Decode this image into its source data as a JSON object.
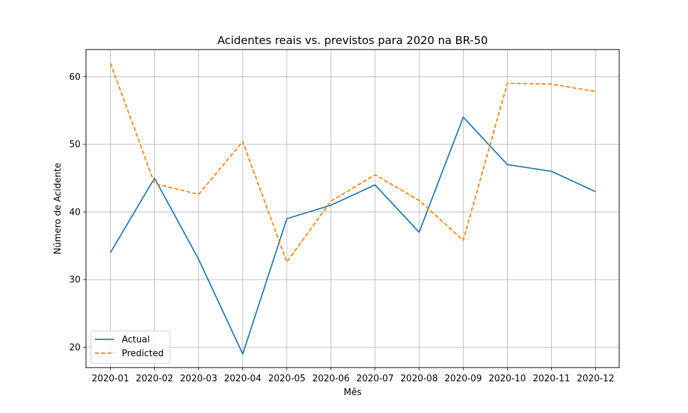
{
  "chart_data": {
    "type": "line",
    "title": "Acidentes reais vs. previstos para 2020 na BR-50",
    "xlabel": "Mês",
    "ylabel": "Número de Acidente",
    "categories": [
      "2020-01",
      "2020-02",
      "2020-03",
      "2020-04",
      "2020-05",
      "2020-06",
      "2020-07",
      "2020-08",
      "2020-09",
      "2020-10",
      "2020-11",
      "2020-12"
    ],
    "yticks": [
      20,
      30,
      40,
      50,
      60
    ],
    "ylim": [
      17.0,
      64.0
    ],
    "grid": true,
    "legend_position": "lower-left",
    "series": [
      {
        "name": "Actual",
        "color": "#1f77b4",
        "style": "solid",
        "values": [
          34,
          45,
          33,
          19,
          39,
          41,
          44,
          37,
          54,
          47,
          46,
          43
        ]
      },
      {
        "name": "Predicted",
        "color": "#ff7f0e",
        "style": "dashed",
        "values": [
          62.0,
          44.2,
          42.6,
          50.4,
          32.6,
          41.6,
          45.5,
          41.7,
          35.8,
          59.0,
          58.9,
          57.8
        ]
      }
    ]
  }
}
